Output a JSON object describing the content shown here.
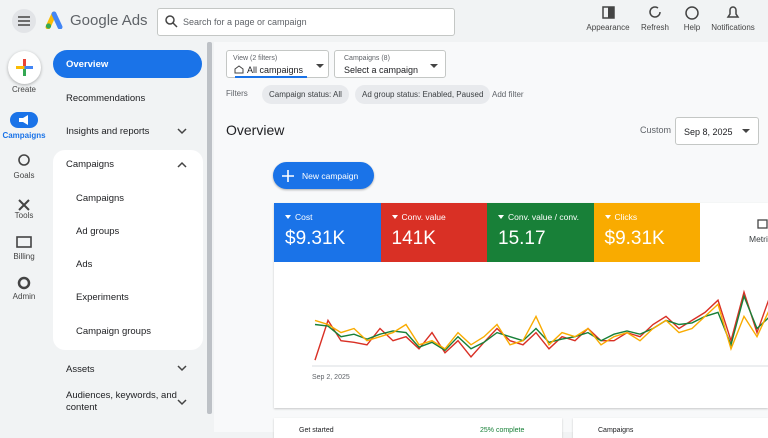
{
  "header": {
    "product": "Google Ads",
    "search_placeholder": "Search for a page or campaign",
    "actions": [
      "Appearance",
      "Refresh",
      "Help",
      "Notifications"
    ]
  },
  "rail": {
    "create": "Create",
    "items": [
      "Campaigns",
      "Goals",
      "Tools",
      "Billing",
      "Admin"
    ]
  },
  "nav": {
    "items": [
      "Overview",
      "Recommendations",
      "Insights and reports",
      "Campaigns",
      "Campaigns",
      "Ad groups",
      "Ads",
      "Experiments",
      "Campaign groups",
      "Assets",
      "Audiences, keywords, and content"
    ]
  },
  "toolbar": {
    "view_label": "View (2 filters)",
    "view_value": "All campaigns",
    "campaign_label": "Campaigns (8)",
    "campaign_value": "Select a campaign",
    "filters_label": "Filters",
    "chips": [
      "Campaign status: All",
      "Ad group status: Enabled, Paused"
    ],
    "add_filter": "Add filter"
  },
  "page": {
    "title": "Overview",
    "date_label": "Custom",
    "date_value": "Sep 8, 2025",
    "new_campaign": "New campaign",
    "metrics_button": "Metrics"
  },
  "cards": {
    "get_started": "Get started",
    "progress": "25% complete",
    "campaigns": "Campaigns"
  },
  "chart_data": {
    "type": "line",
    "ylim": [
      0,
      100
    ],
    "categories": [
      "Sep 2, 2025",
      null,
      null,
      null,
      null,
      null,
      null,
      null,
      null,
      null,
      null,
      null,
      null,
      null,
      null,
      null,
      null,
      null,
      null,
      null,
      null,
      null,
      null,
      null,
      null,
      null,
      null,
      null,
      null,
      null,
      null,
      null,
      null,
      null,
      null,
      null
    ],
    "series": [
      {
        "name": "Cost",
        "color": "#1a73e8",
        "total": "$9.31K"
      },
      {
        "name": "Conv. value",
        "color": "#d93025",
        "total": "141K",
        "values": [
          6,
          55,
          30,
          28,
          25,
          45,
          30,
          35,
          20,
          40,
          15,
          30,
          10,
          28,
          45,
          30,
          25,
          40,
          20,
          35,
          30,
          45,
          30,
          30,
          40,
          35,
          50,
          60,
          45,
          55,
          65,
          80,
          30,
          90,
          40,
          85
        ]
      },
      {
        "name": "Conv. value / conv.",
        "color": "#188038",
        "total": "15.17",
        "values": [
          50,
          48,
          35,
          38,
          32,
          38,
          42,
          40,
          22,
          28,
          18,
          35,
          20,
          28,
          40,
          35,
          30,
          45,
          28,
          32,
          35,
          40,
          30,
          38,
          42,
          38,
          45,
          55,
          50,
          52,
          60,
          65,
          25,
          85,
          45,
          60
        ]
      },
      {
        "name": "Clicks",
        "color": "#f9ab00",
        "total": "$9.31K",
        "values": [
          55,
          50,
          40,
          45,
          30,
          35,
          40,
          50,
          25,
          30,
          20,
          40,
          25,
          35,
          50,
          25,
          30,
          60,
          25,
          40,
          35,
          45,
          25,
          35,
          40,
          30,
          45,
          55,
          40,
          45,
          60,
          75,
          20,
          60,
          35,
          70
        ]
      }
    ]
  }
}
